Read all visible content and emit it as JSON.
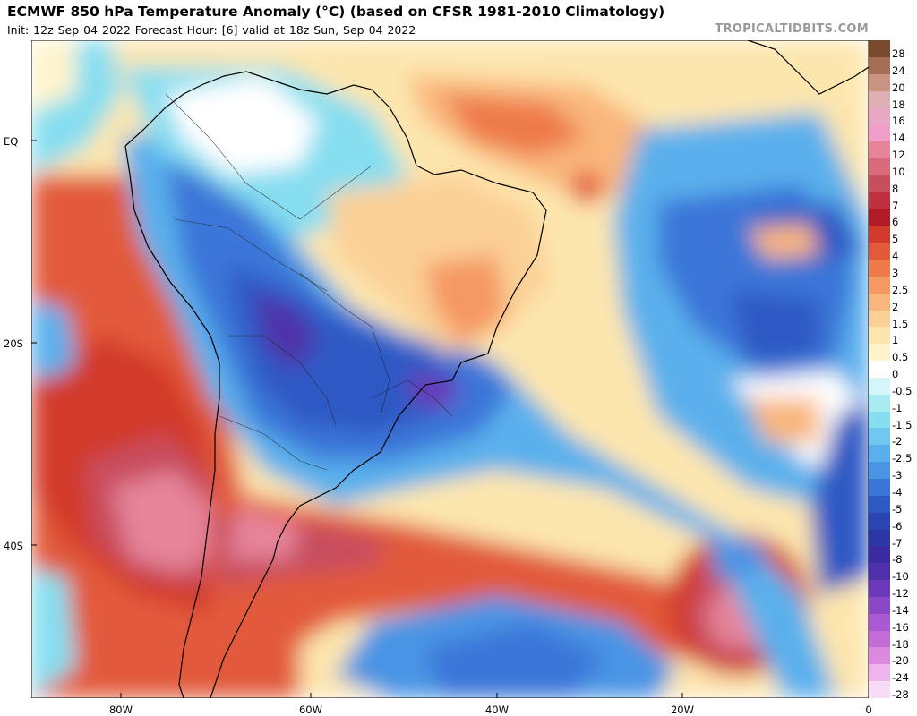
{
  "header": {
    "title": "ECMWF 850 hPa Temperature Anomaly (°C) (based on CFSR 1981-2010 Climatology)",
    "subtitle": "Init: 12z Sep 04 2022   Forecast Hour: [6]   valid at 18z Sun, Sep 04 2022",
    "brand": "TROPICALTIDBITS.COM"
  },
  "map": {
    "lat_labels": [
      {
        "text": "EQ",
        "lat": 0
      },
      {
        "text": "20S",
        "lat": -20
      },
      {
        "text": "40S",
        "lat": -40
      }
    ],
    "lon_labels": [
      {
        "text": "80W",
        "lon": -80
      },
      {
        "text": "60W",
        "lon": -60
      },
      {
        "text": "40W",
        "lon": -40
      },
      {
        "text": "20W",
        "lon": -20
      },
      {
        "text": "0",
        "lon": 0
      }
    ],
    "lon_range": [
      -90,
      0
    ],
    "lat_range": [
      10,
      -55
    ]
  },
  "colorbar": {
    "labels": [
      "28",
      "24",
      "20",
      "18",
      "16",
      "14",
      "12",
      "10",
      "8",
      "7",
      "6",
      "5",
      "4",
      "3",
      "2.5",
      "2",
      "1.5",
      "1",
      "0.5",
      "0",
      "-0.5",
      "-1",
      "-1.5",
      "-2",
      "-2.5",
      "-3",
      "-4",
      "-5",
      "-6",
      "-7",
      "-8",
      "-10",
      "-12",
      "-14",
      "-16",
      "-18",
      "-20",
      "-24",
      "-28"
    ],
    "colors": [
      "#7a4a2e",
      "#a66f55",
      "#c99481",
      "#ddb0b6",
      "#e8a7c3",
      "#f0a0c8",
      "#e6849a",
      "#d96a7a",
      "#c84e5e",
      "#c0303e",
      "#b01b26",
      "#d23a2c",
      "#e25a3a",
      "#ee7a4a",
      "#f59862",
      "#f9b67c",
      "#fbd096",
      "#fde6ae",
      "#fff4cc",
      "#ffffff",
      "#d4f6f8",
      "#a8ecf2",
      "#86def0",
      "#6ec8f0",
      "#5ab0ec",
      "#4a94e4",
      "#3a76d8",
      "#2e58c4",
      "#2a44b2",
      "#2c36a4",
      "#3a2ca0",
      "#5030a8",
      "#6a38b8",
      "#8a48c8",
      "#a85ad2",
      "#c26cd8",
      "#dc8ae0",
      "#eeb4ec",
      "#f6dcf4"
    ]
  }
}
